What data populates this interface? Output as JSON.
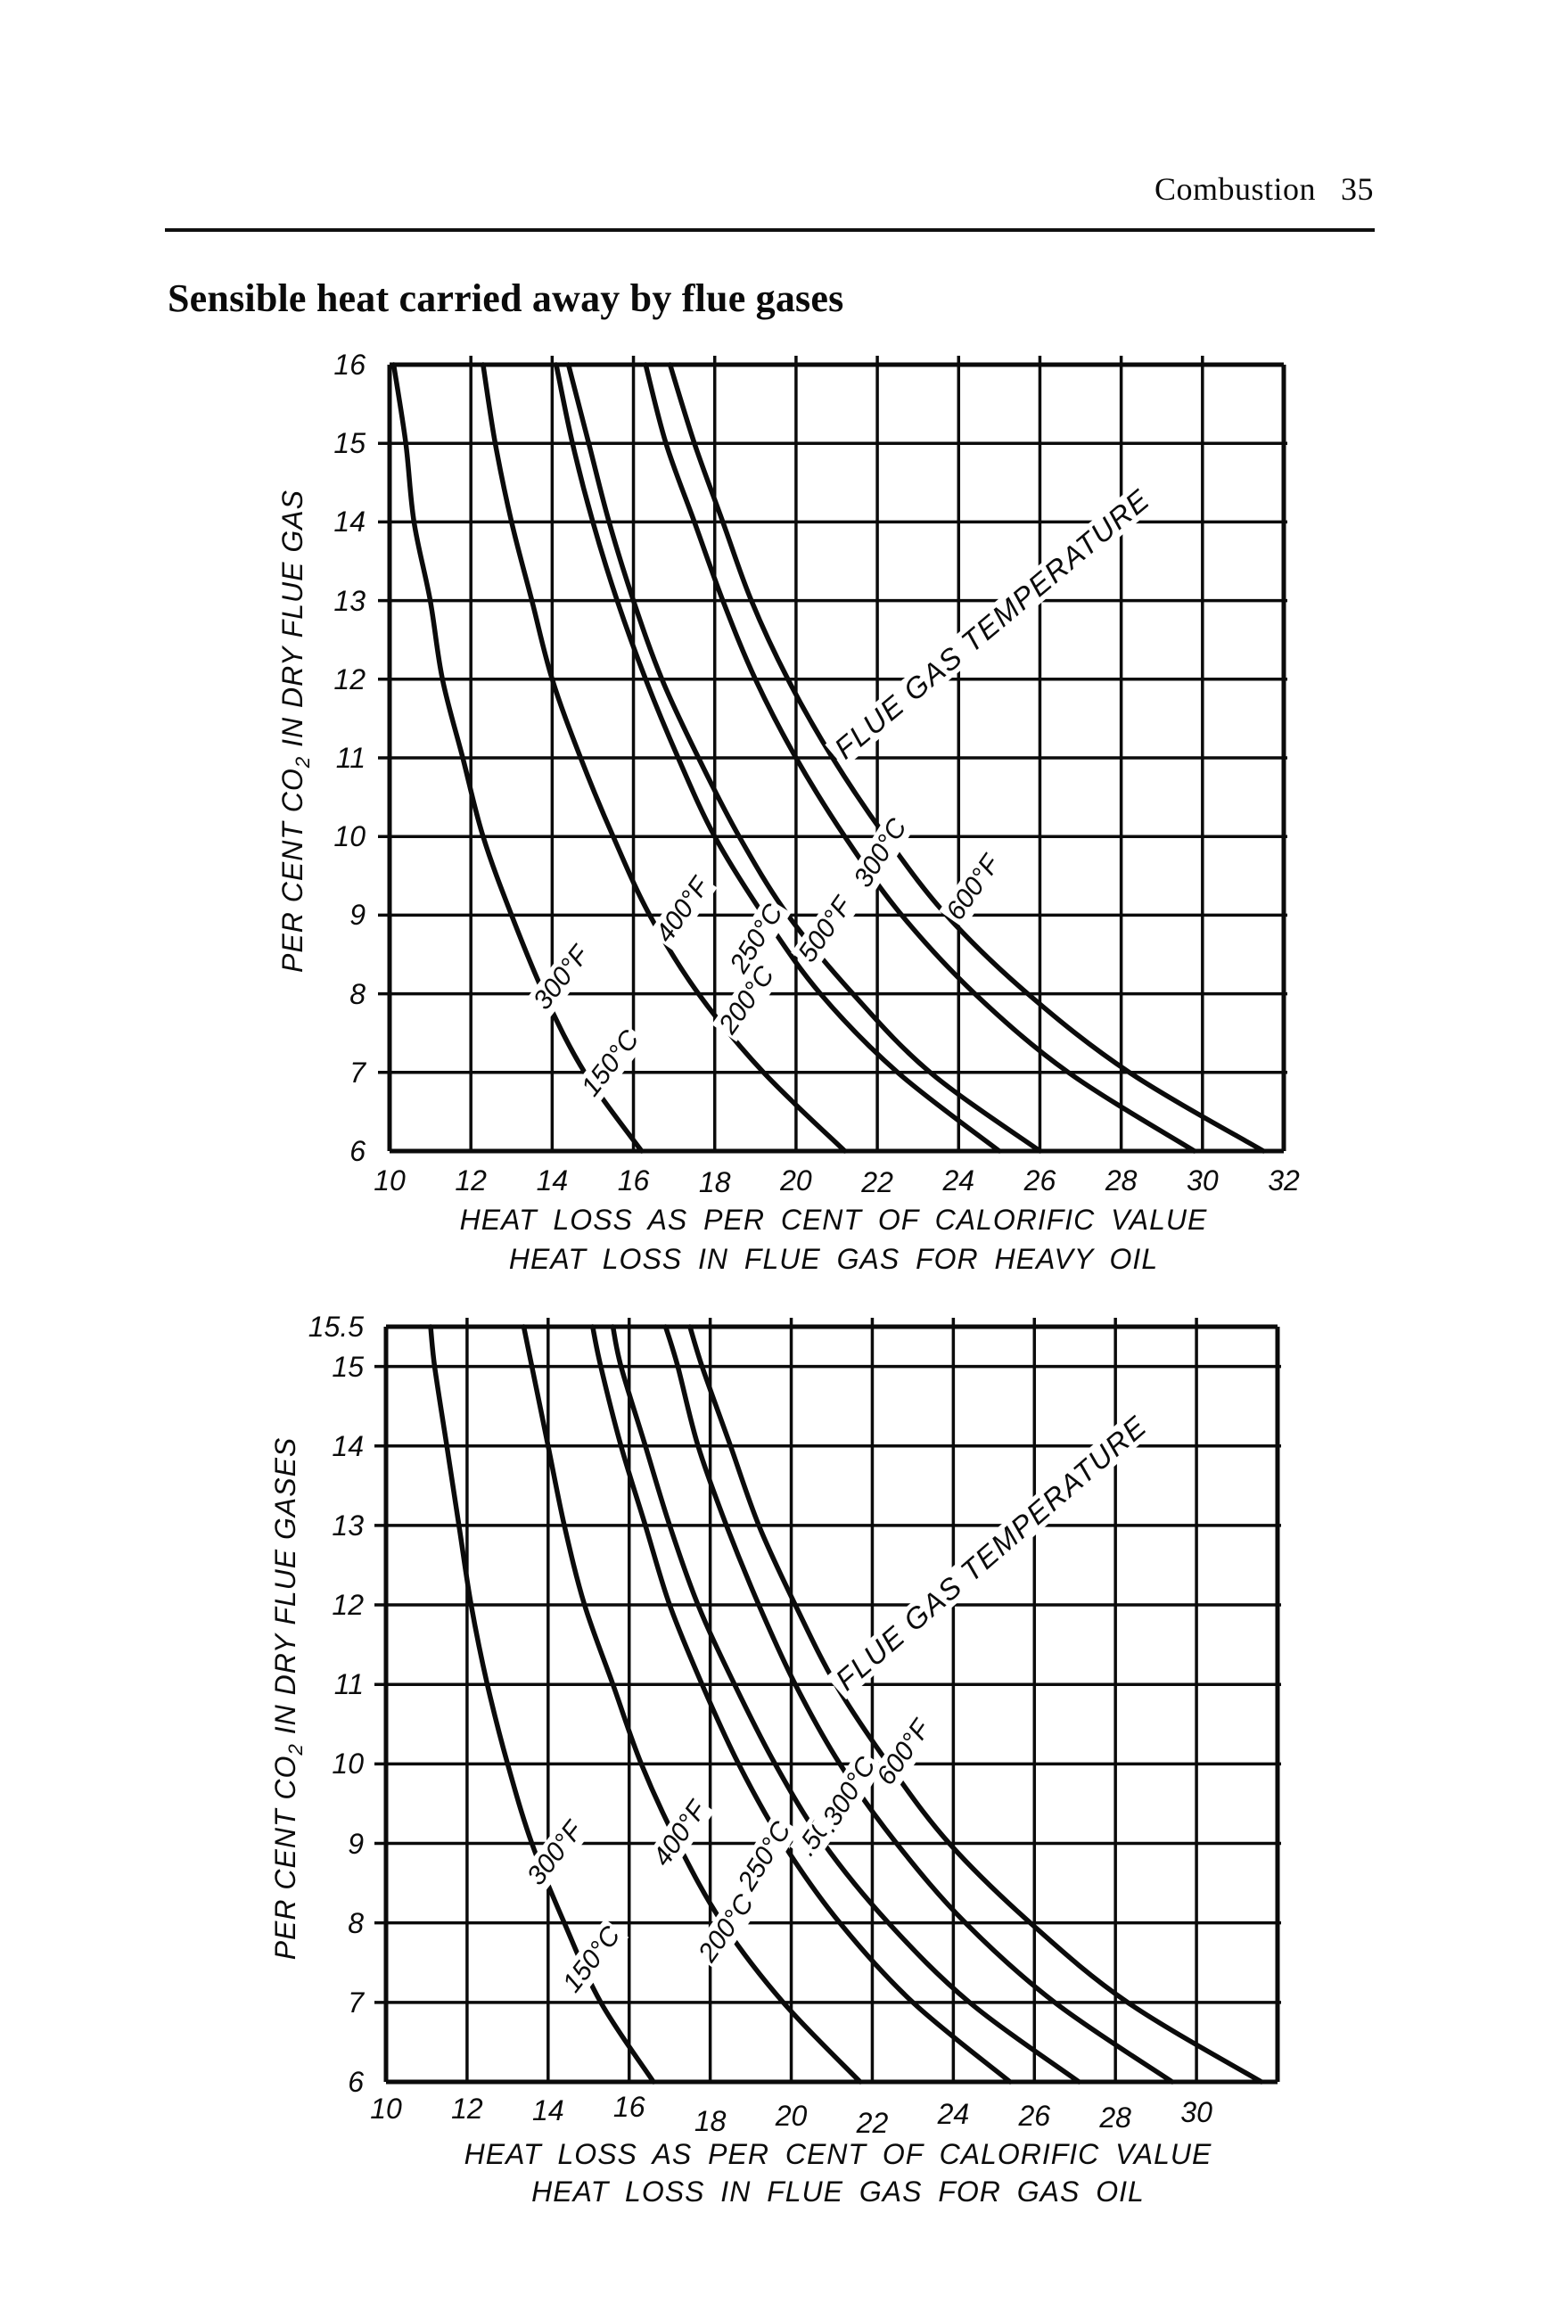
{
  "header": {
    "running_title": "Combustion",
    "page_number": "35"
  },
  "title": "Sensible heat carried away by flue gases",
  "charts": [
    {
      "id": "heavy-oil",
      "y_axis_title": {
        "pre": "PER CENT CO",
        "sub": "2",
        "post": " IN DRY FLUE GAS"
      },
      "x_axis_caption": "HEAT LOSS AS PER CENT OF CALORIFIC VALUE",
      "subtitle": "HEAT LOSS IN FLUE GAS FOR HEAVY OIL",
      "annotation": "FLUE GAS TEMPERATURE",
      "y_tick_labels": [
        "16",
        "15",
        "14",
        "13",
        "12",
        "11",
        "10",
        "9",
        "8",
        "7",
        "6"
      ],
      "x_tick_labels": [
        "10",
        "12",
        "14",
        "16",
        "18",
        "20",
        "22",
        "24",
        "26",
        "28",
        "30",
        "32"
      ],
      "curve_labels": [
        "300°F",
        "150°C",
        "400°F",
        "200°C",
        "250°C",
        "500°F",
        "300°C",
        "600°F"
      ]
    },
    {
      "id": "gas-oil",
      "y_axis_title": {
        "pre": "PER CENT CO",
        "sub": "2",
        "post": " IN DRY FLUE GASES"
      },
      "x_axis_caption": "HEAT LOSS AS PER CENT OF CALORIFIC VALUE",
      "subtitle": "HEAT LOSS IN FLUE GAS FOR GAS OIL",
      "annotation": "FLUE GAS TEMPERATURE",
      "y_tick_labels": [
        "15.5",
        "15",
        "14",
        "13",
        "12",
        "11",
        "10",
        "9",
        "8",
        "7",
        "6"
      ],
      "x_tick_labels": [
        "10",
        "12",
        "14",
        "16",
        "18",
        "20",
        "22",
        "24",
        "26",
        "28",
        "30"
      ],
      "curve_labels": [
        "300°F",
        "150°C",
        "400°F",
        "200°C",
        "250°C",
        ".500°F",
        ".300°C",
        "600°F"
      ]
    }
  ],
  "chart_data": [
    {
      "type": "line",
      "title": "HEAT LOSS IN FLUE GAS FOR HEAVY OIL",
      "xlabel": "HEAT LOSS AS PER CENT OF CALORIFIC VALUE",
      "ylabel": "PER CENT CO2 IN DRY FLUE GAS",
      "xlim": [
        10,
        32
      ],
      "ylim": [
        6,
        16
      ],
      "x_ticks": [
        10,
        12,
        14,
        16,
        18,
        20,
        22,
        24,
        26,
        28,
        30,
        32
      ],
      "y_ticks": [
        16,
        15,
        14,
        13,
        12,
        11,
        10,
        9,
        8,
        7,
        6
      ],
      "grid": true,
      "annotation": "FLUE GAS TEMPERATURE",
      "series": [
        {
          "name": "300°F / 150°C",
          "points": [
            [
              10.1,
              16
            ],
            [
              10.4,
              15
            ],
            [
              10.6,
              14
            ],
            [
              11.0,
              13
            ],
            [
              11.3,
              12
            ],
            [
              11.8,
              11
            ],
            [
              12.3,
              10
            ],
            [
              13.0,
              9
            ],
            [
              13.8,
              8
            ],
            [
              14.8,
              7
            ],
            [
              16.2,
              6
            ]
          ]
        },
        {
          "name": "400°F / 200°C",
          "points": [
            [
              12.3,
              16
            ],
            [
              12.6,
              15
            ],
            [
              13.0,
              14
            ],
            [
              13.5,
              13
            ],
            [
              14.0,
              12
            ],
            [
              14.7,
              11
            ],
            [
              15.5,
              10
            ],
            [
              16.4,
              9
            ],
            [
              17.6,
              8
            ],
            [
              19.2,
              7
            ],
            [
              21.2,
              6
            ]
          ]
        },
        {
          "name": "250°C",
          "points": [
            [
              14.1,
              16
            ],
            [
              14.5,
              15
            ],
            [
              15.0,
              14
            ],
            [
              15.6,
              13
            ],
            [
              16.3,
              12
            ],
            [
              17.1,
              11
            ],
            [
              18.0,
              10
            ],
            [
              19.2,
              9
            ],
            [
              20.6,
              8
            ],
            [
              22.5,
              7
            ],
            [
              25.0,
              6
            ]
          ]
        },
        {
          "name": "500°F",
          "points": [
            [
              14.4,
              16
            ],
            [
              14.9,
              15
            ],
            [
              15.4,
              14
            ],
            [
              16.0,
              13
            ],
            [
              16.7,
              12
            ],
            [
              17.6,
              11
            ],
            [
              18.6,
              10
            ],
            [
              19.8,
              9
            ],
            [
              21.4,
              8
            ],
            [
              23.3,
              7
            ],
            [
              26.0,
              6
            ]
          ]
        },
        {
          "name": "300°C",
          "points": [
            [
              16.3,
              16
            ],
            [
              16.8,
              15
            ],
            [
              17.5,
              14
            ],
            [
              18.2,
              13
            ],
            [
              19.0,
              12
            ],
            [
              20.0,
              11
            ],
            [
              21.2,
              10
            ],
            [
              22.6,
              9
            ],
            [
              24.4,
              8
            ],
            [
              26.7,
              7
            ],
            [
              29.8,
              6
            ]
          ]
        },
        {
          "name": "600°F",
          "points": [
            [
              16.9,
              16
            ],
            [
              17.5,
              15
            ],
            [
              18.2,
              14
            ],
            [
              18.9,
              13
            ],
            [
              19.8,
              12
            ],
            [
              20.9,
              11
            ],
            [
              22.2,
              10
            ],
            [
              23.7,
              9
            ],
            [
              25.7,
              8
            ],
            [
              28.2,
              7
            ],
            [
              31.5,
              6
            ]
          ]
        }
      ]
    },
    {
      "type": "line",
      "title": "HEAT LOSS IN FLUE GAS FOR GAS OIL",
      "xlabel": "HEAT LOSS AS PER CENT OF CALORIFIC VALUE",
      "ylabel": "PER CENT CO2 IN DRY FLUE GASES",
      "xlim": [
        10,
        32
      ],
      "ylim": [
        6,
        15.5
      ],
      "x_ticks": [
        10,
        12,
        14,
        16,
        18,
        20,
        22,
        24,
        26,
        28,
        30
      ],
      "y_ticks": [
        15.5,
        15,
        14,
        13,
        12,
        11,
        10,
        9,
        8,
        7,
        6
      ],
      "grid": true,
      "annotation": "FLUE GAS TEMPERATURE",
      "series": [
        {
          "name": "300°F / 150°C",
          "points": [
            [
              11.1,
              15.5
            ],
            [
              11.2,
              15
            ],
            [
              11.5,
              14
            ],
            [
              11.8,
              13
            ],
            [
              12.1,
              12
            ],
            [
              12.5,
              11
            ],
            [
              13.0,
              10
            ],
            [
              13.6,
              9
            ],
            [
              14.4,
              8
            ],
            [
              15.3,
              7
            ],
            [
              16.6,
              6
            ]
          ]
        },
        {
          "name": "400°F / 200°C",
          "points": [
            [
              13.4,
              15.5
            ],
            [
              13.6,
              15
            ],
            [
              14.0,
              14
            ],
            [
              14.4,
              13
            ],
            [
              14.9,
              12
            ],
            [
              15.6,
              11
            ],
            [
              16.3,
              10
            ],
            [
              17.2,
              9
            ],
            [
              18.3,
              8
            ],
            [
              19.8,
              7
            ],
            [
              21.7,
              6
            ]
          ]
        },
        {
          "name": "250°C",
          "points": [
            [
              15.1,
              15.5
            ],
            [
              15.3,
              15
            ],
            [
              15.8,
              14
            ],
            [
              16.4,
              13
            ],
            [
              17.0,
              12
            ],
            [
              17.8,
              11
            ],
            [
              18.7,
              10
            ],
            [
              19.8,
              9
            ],
            [
              21.2,
              8
            ],
            [
              23.0,
              7
            ],
            [
              25.4,
              6
            ]
          ]
        },
        {
          "name": "500°F",
          "points": [
            [
              15.6,
              15.5
            ],
            [
              15.8,
              15
            ],
            [
              16.4,
              14
            ],
            [
              17.0,
              13
            ],
            [
              17.7,
              12
            ],
            [
              18.6,
              11
            ],
            [
              19.6,
              10
            ],
            [
              20.8,
              9
            ],
            [
              22.4,
              8
            ],
            [
              24.4,
              7
            ],
            [
              27.1,
              6
            ]
          ]
        },
        {
          "name": "300°C",
          "points": [
            [
              16.9,
              15.5
            ],
            [
              17.2,
              15
            ],
            [
              17.7,
              14
            ],
            [
              18.4,
              13
            ],
            [
              19.2,
              12
            ],
            [
              20.1,
              11
            ],
            [
              21.2,
              10
            ],
            [
              22.6,
              9
            ],
            [
              24.3,
              8
            ],
            [
              26.5,
              7
            ],
            [
              29.4,
              6
            ]
          ]
        },
        {
          "name": "600°F",
          "points": [
            [
              17.5,
              15.5
            ],
            [
              17.8,
              15
            ],
            [
              18.5,
              14
            ],
            [
              19.2,
              13
            ],
            [
              20.1,
              12
            ],
            [
              21.1,
              11
            ],
            [
              22.4,
              10
            ],
            [
              23.9,
              9
            ],
            [
              25.9,
              8
            ],
            [
              28.3,
              7
            ],
            [
              31.6,
              6
            ]
          ]
        }
      ]
    }
  ]
}
